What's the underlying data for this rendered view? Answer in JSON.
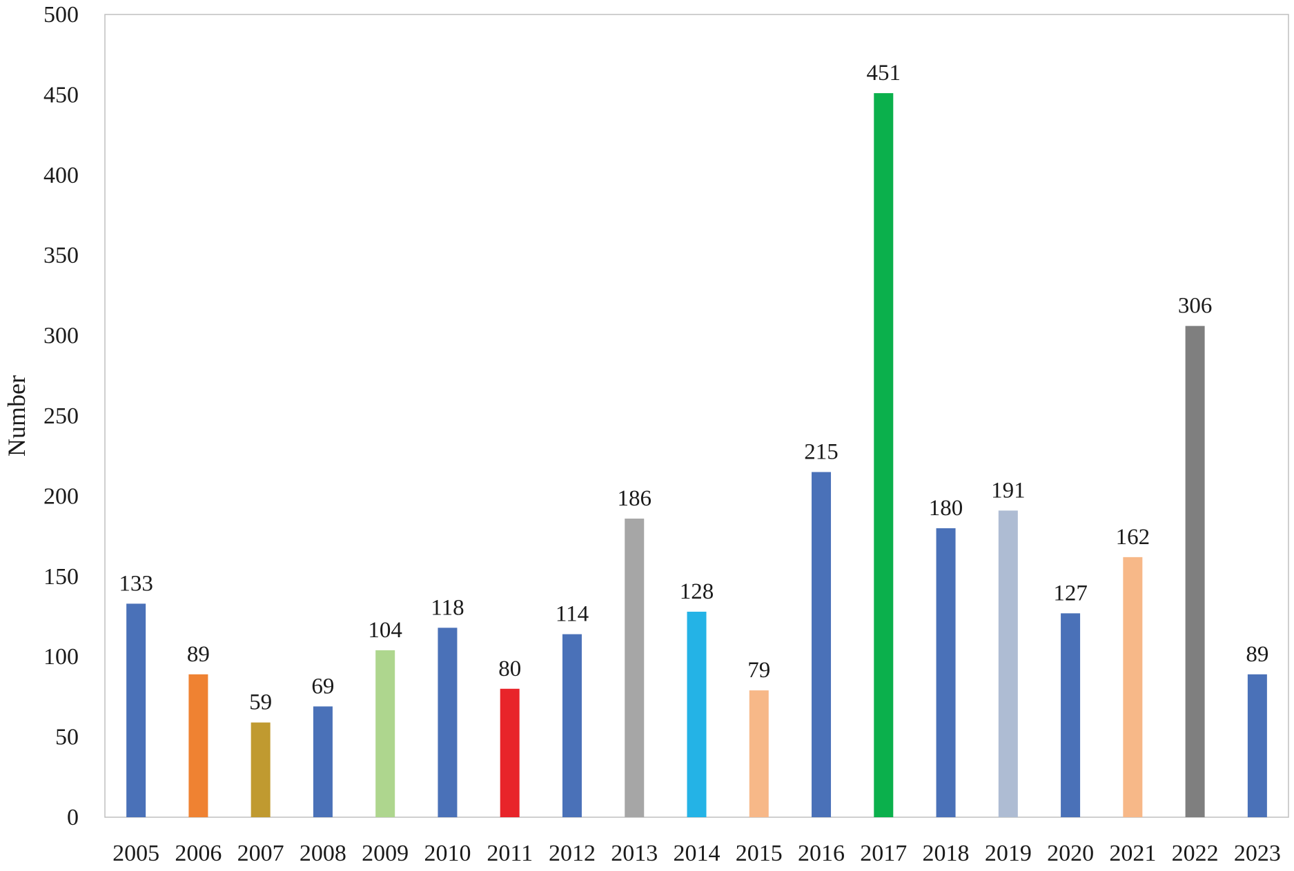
{
  "chart_data": {
    "type": "bar",
    "title": "",
    "xlabel": "",
    "ylabel": "Number",
    "ylim": [
      0,
      500
    ],
    "yticks": [
      0,
      50,
      100,
      150,
      200,
      250,
      300,
      350,
      400,
      450,
      500
    ],
    "grid": false,
    "legend": "none",
    "categories": [
      "2005",
      "2006",
      "2007",
      "2008",
      "2009",
      "2010",
      "2011",
      "2012",
      "2013",
      "2014",
      "2015",
      "2016",
      "2017",
      "2018",
      "2019",
      "2020",
      "2021",
      "2022",
      "2023"
    ],
    "values": [
      133,
      89,
      59,
      69,
      104,
      118,
      80,
      114,
      186,
      128,
      79,
      215,
      451,
      180,
      191,
      127,
      162,
      306,
      89
    ],
    "colors": [
      "#4a71b8",
      "#ef8232",
      "#c09a30",
      "#4a71b8",
      "#aed68e",
      "#4a71b8",
      "#e8242a",
      "#4a71b8",
      "#a6a6a6",
      "#24b3e6",
      "#f7b888",
      "#4a71b8",
      "#0bb04c",
      "#4a71b8",
      "#aebcd3",
      "#4a71b8",
      "#f7b888",
      "#7f7f7f",
      "#4a71b8"
    ]
  }
}
